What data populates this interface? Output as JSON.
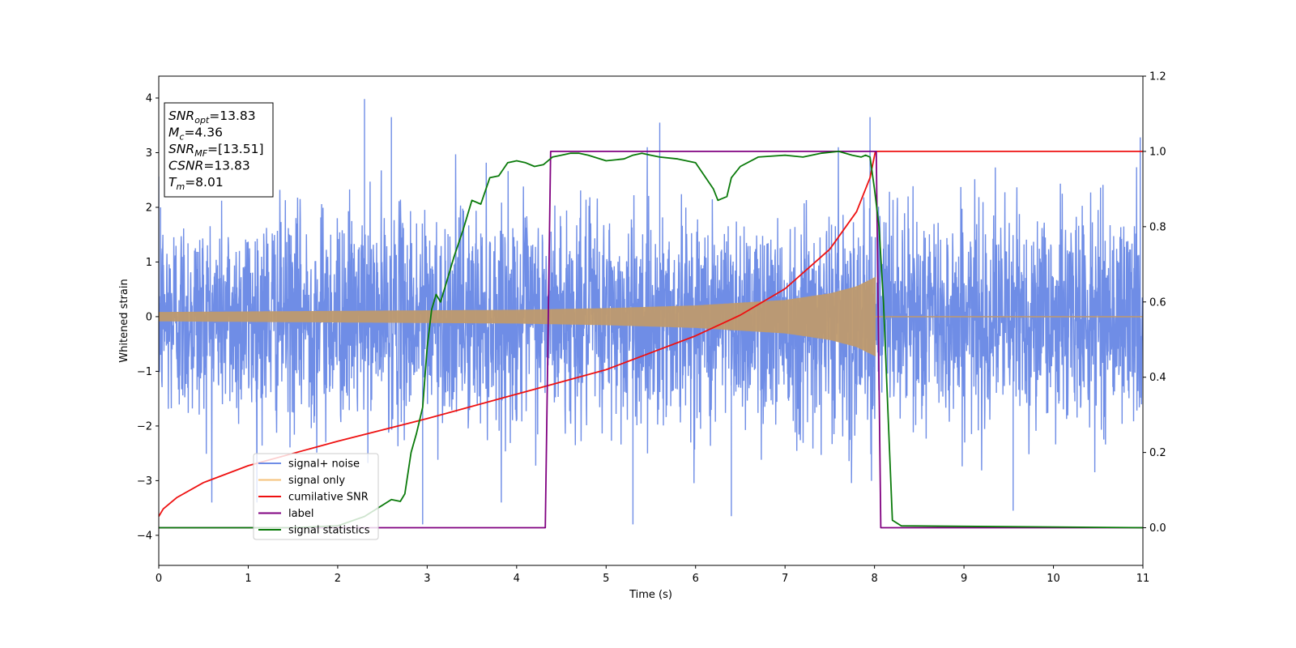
{
  "chart_data": {
    "type": "line",
    "xlabel": "Time (s)",
    "ylabel": "Whitened strain",
    "xlim": [
      0,
      11
    ],
    "ylim_left": [
      -4.55,
      4.4
    ],
    "ylim_right": [
      -0.1,
      1.2
    ],
    "x_ticks": [
      "0",
      "1",
      "2",
      "3",
      "4",
      "5",
      "6",
      "7",
      "8",
      "9",
      "10",
      "11"
    ],
    "y_ticks_left": [
      "−4",
      "−3",
      "−2",
      "−1",
      "0",
      "1",
      "2",
      "3",
      "4"
    ],
    "y_ticks_right": [
      "0.0",
      "0.2",
      "0.4",
      "0.6",
      "0.8",
      "1.0",
      "1.2"
    ],
    "y_tick_values_left": [
      -4,
      -3,
      -2,
      -1,
      0,
      1,
      2,
      3,
      4
    ],
    "y_tick_values_right": [
      0,
      0.2,
      0.4,
      0.6,
      0.8,
      1.0,
      1.2
    ],
    "grid": false,
    "legend_position": "lower-left",
    "annotation": {
      "lines": [
        {
          "main": "SNR",
          "sub": "opt",
          "rest": "=13.83"
        },
        {
          "main": "M",
          "sub": "c",
          "rest": "=4.36"
        },
        {
          "main": "SNR",
          "sub": "MF",
          "rest": "=[13.51]"
        },
        {
          "main": "CSNR",
          "sub": "",
          "rest": "=13.83"
        },
        {
          "main": "T",
          "sub": "m",
          "rest": "=8.01"
        }
      ]
    },
    "series": [
      {
        "name": "signal+ noise",
        "axis": "left",
        "color": "#6f8de6",
        "description": "whitened noise with unit variance plus chirp signal, t from 0 to 11 s",
        "noise_std": 1.0,
        "peaks": [
          [
            0.02,
            2.0
          ],
          [
            2.3,
            3.98
          ],
          [
            2.6,
            3.65
          ],
          [
            5.6,
            3.55
          ],
          [
            5.3,
            -3.8
          ],
          [
            2.95,
            -3.8
          ],
          [
            6.4,
            -3.65
          ],
          [
            7.95,
            3.65
          ],
          [
            10.97,
            3.28
          ],
          [
            9.55,
            -3.55
          ]
        ]
      },
      {
        "name": "signal only",
        "axis": "left",
        "color": "#f5c17a",
        "description": "chirp with amplitude envelope",
        "envelope": [
          [
            0,
            0.08
          ],
          [
            2,
            0.1
          ],
          [
            4,
            0.12
          ],
          [
            5,
            0.15
          ],
          [
            6,
            0.2
          ],
          [
            7,
            0.3
          ],
          [
            7.5,
            0.42
          ],
          [
            7.8,
            0.55
          ],
          [
            8.01,
            0.72
          ]
        ],
        "zero_after": 8.01
      },
      {
        "name": "cumilative SNR",
        "axis": "right",
        "color": "#ee1111",
        "x": [
          0,
          0.05,
          0.2,
          0.5,
          1,
          2,
          3,
          4,
          5,
          6,
          6.5,
          7,
          7.5,
          7.8,
          7.95,
          8.01,
          11
        ],
        "y": [
          0.03,
          0.05,
          0.08,
          0.12,
          0.165,
          0.23,
          0.29,
          0.355,
          0.42,
          0.51,
          0.565,
          0.635,
          0.74,
          0.84,
          0.93,
          1.0,
          1.0
        ]
      },
      {
        "name": "label",
        "axis": "right",
        "color": "#800080",
        "x": [
          0,
          4.32,
          4.38,
          8.02,
          8.07,
          11
        ],
        "y": [
          0,
          0,
          1,
          1,
          0,
          0
        ]
      },
      {
        "name": "signal statistics",
        "axis": "right",
        "color": "#0a7a0a",
        "x": [
          0,
          1.5,
          2.0,
          2.3,
          2.5,
          2.6,
          2.7,
          2.75,
          2.82,
          2.88,
          2.95,
          3.0,
          3.05,
          3.1,
          3.15,
          3.2,
          3.3,
          3.4,
          3.5,
          3.6,
          3.7,
          3.8,
          3.9,
          4.0,
          4.1,
          4.2,
          4.3,
          4.4,
          4.5,
          4.6,
          4.7,
          4.8,
          5.0,
          5.2,
          5.3,
          5.4,
          5.5,
          5.6,
          5.8,
          6.0,
          6.2,
          6.25,
          6.35,
          6.4,
          6.5,
          6.7,
          7.0,
          7.2,
          7.4,
          7.6,
          7.75,
          7.85,
          7.9,
          7.95,
          8.0,
          8.05,
          8.1,
          8.2,
          8.3,
          11
        ],
        "y": [
          0.0,
          0.0,
          0.005,
          0.03,
          0.06,
          0.075,
          0.07,
          0.09,
          0.2,
          0.25,
          0.32,
          0.48,
          0.58,
          0.62,
          0.6,
          0.64,
          0.72,
          0.79,
          0.87,
          0.86,
          0.93,
          0.935,
          0.97,
          0.975,
          0.97,
          0.96,
          0.965,
          0.985,
          0.99,
          0.995,
          0.995,
          0.99,
          0.975,
          0.98,
          0.99,
          0.995,
          0.99,
          0.985,
          0.98,
          0.97,
          0.9,
          0.87,
          0.88,
          0.93,
          0.96,
          0.985,
          0.99,
          0.985,
          0.995,
          1.0,
          0.99,
          0.985,
          0.99,
          0.985,
          0.9,
          0.8,
          0.6,
          0.02,
          0.005,
          0.0
        ]
      }
    ]
  }
}
